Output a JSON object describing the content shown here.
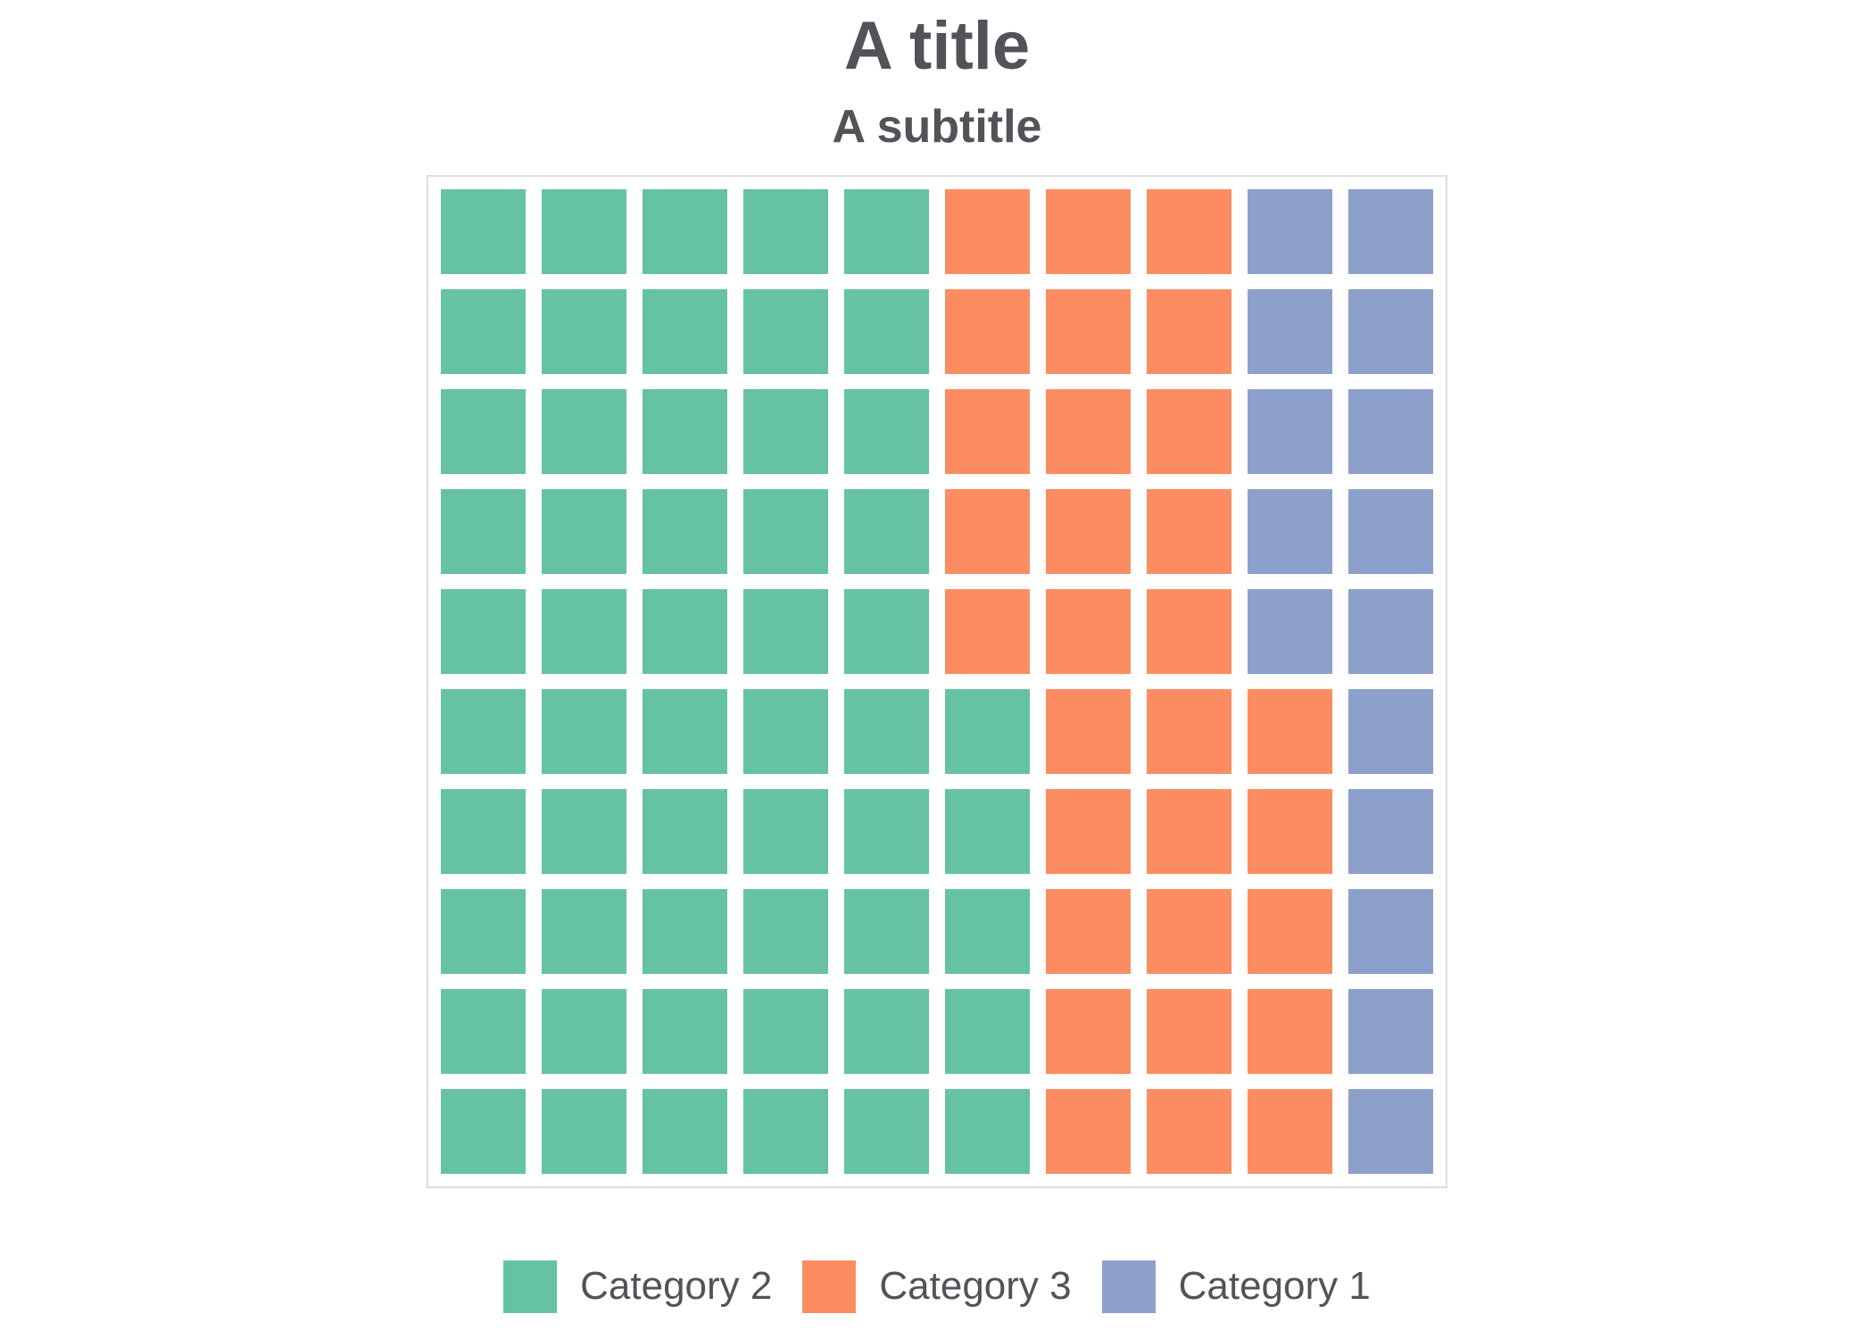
{
  "title": "A title",
  "subtitle": "A subtitle",
  "colors": {
    "c1": "#8da0cb",
    "c2": "#66c2a5",
    "c3": "#fc8d62",
    "text": "#515358",
    "panel_border": "#dcdfdd",
    "background": "#ffffff"
  },
  "legend": {
    "position": "bottom",
    "items": [
      {
        "label": "Category 2",
        "color_key": "c2"
      },
      {
        "label": "Category 3",
        "color_key": "c3"
      },
      {
        "label": "Category 1",
        "color_key": "c1"
      }
    ]
  },
  "chart_data": {
    "type": "waffle",
    "title": "A title",
    "subtitle": "A subtitle",
    "rows": 10,
    "cols": 10,
    "total_cells": 100,
    "legend_position": "bottom",
    "grid_on": false,
    "series": [
      {
        "name": "Category 2",
        "value": 55,
        "color": "#66c2a5"
      },
      {
        "name": "Category 3",
        "value": 30,
        "color": "#fc8d62"
      },
      {
        "name": "Category 1",
        "value": 15,
        "color": "#8da0cb"
      }
    ],
    "grid_rows": [
      [
        "c2",
        "c2",
        "c2",
        "c2",
        "c2",
        "c3",
        "c3",
        "c3",
        "c1",
        "c1"
      ],
      [
        "c2",
        "c2",
        "c2",
        "c2",
        "c2",
        "c3",
        "c3",
        "c3",
        "c1",
        "c1"
      ],
      [
        "c2",
        "c2",
        "c2",
        "c2",
        "c2",
        "c3",
        "c3",
        "c3",
        "c1",
        "c1"
      ],
      [
        "c2",
        "c2",
        "c2",
        "c2",
        "c2",
        "c3",
        "c3",
        "c3",
        "c1",
        "c1"
      ],
      [
        "c2",
        "c2",
        "c2",
        "c2",
        "c2",
        "c3",
        "c3",
        "c3",
        "c1",
        "c1"
      ],
      [
        "c2",
        "c2",
        "c2",
        "c2",
        "c2",
        "c2",
        "c3",
        "c3",
        "c3",
        "c1"
      ],
      [
        "c2",
        "c2",
        "c2",
        "c2",
        "c2",
        "c2",
        "c3",
        "c3",
        "c3",
        "c1"
      ],
      [
        "c2",
        "c2",
        "c2",
        "c2",
        "c2",
        "c2",
        "c3",
        "c3",
        "c3",
        "c1"
      ],
      [
        "c2",
        "c2",
        "c2",
        "c2",
        "c2",
        "c2",
        "c3",
        "c3",
        "c3",
        "c1"
      ],
      [
        "c2",
        "c2",
        "c2",
        "c2",
        "c2",
        "c2",
        "c3",
        "c3",
        "c3",
        "c1"
      ]
    ]
  }
}
